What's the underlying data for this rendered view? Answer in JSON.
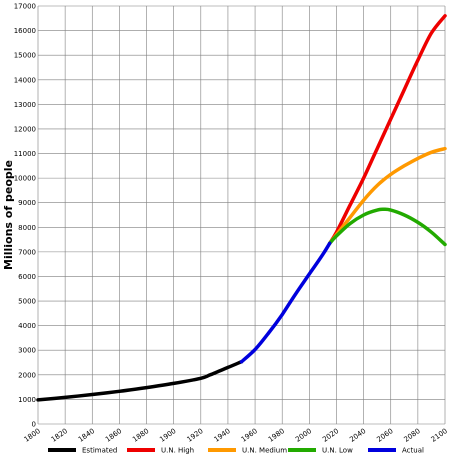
{
  "chart_data": {
    "type": "line",
    "title": "",
    "xlabel": "",
    "ylabel": "Millions of people",
    "xlim": [
      1800,
      2100
    ],
    "ylim": [
      0,
      17000
    ],
    "grid": true,
    "legend_placement": "bottom",
    "x_ticks": [
      1800,
      1820,
      1840,
      1860,
      1880,
      1900,
      1920,
      1940,
      1960,
      1980,
      2000,
      2020,
      2040,
      2060,
      2080,
      2100
    ],
    "y_ticks": [
      0,
      1000,
      2000,
      3000,
      4000,
      5000,
      6000,
      7000,
      8000,
      9000,
      10000,
      11000,
      12000,
      13000,
      14000,
      15000,
      16000,
      17000
    ],
    "series": [
      {
        "name": "Estimated",
        "color": "#000000",
        "x": [
          1800,
          1820,
          1840,
          1860,
          1880,
          1900,
          1920,
          1927,
          1940,
          1950
        ],
        "y": [
          980,
          1080,
          1200,
          1330,
          1480,
          1650,
          1860,
          2000,
          2300,
          2530
        ]
      },
      {
        "name": "U.N. High",
        "color": "#ee0000",
        "x": [
          2015,
          2020,
          2030,
          2040,
          2050,
          2060,
          2070,
          2080,
          2090,
          2100
        ],
        "y": [
          7350,
          7800,
          8900,
          10000,
          11200,
          12400,
          13600,
          14800,
          15900,
          16600
        ]
      },
      {
        "name": "U.N. Medium",
        "color": "#ff9900",
        "x": [
          2015,
          2020,
          2030,
          2040,
          2050,
          2060,
          2070,
          2080,
          2090,
          2100
        ],
        "y": [
          7350,
          7700,
          8400,
          9100,
          9700,
          10150,
          10500,
          10800,
          11050,
          11200
        ]
      },
      {
        "name": "U.N. Low",
        "color": "#22aa00",
        "x": [
          2015,
          2020,
          2030,
          2040,
          2050,
          2055,
          2060,
          2070,
          2080,
          2090,
          2100
        ],
        "y": [
          7350,
          7650,
          8150,
          8500,
          8700,
          8730,
          8700,
          8500,
          8200,
          7800,
          7300
        ]
      },
      {
        "name": "Actual",
        "color": "#0000dd",
        "x": [
          1950,
          1960,
          1970,
          1980,
          1990,
          2000,
          2010,
          2015
        ],
        "y": [
          2530,
          3030,
          3700,
          4450,
          5300,
          6100,
          6900,
          7350
        ]
      }
    ]
  }
}
